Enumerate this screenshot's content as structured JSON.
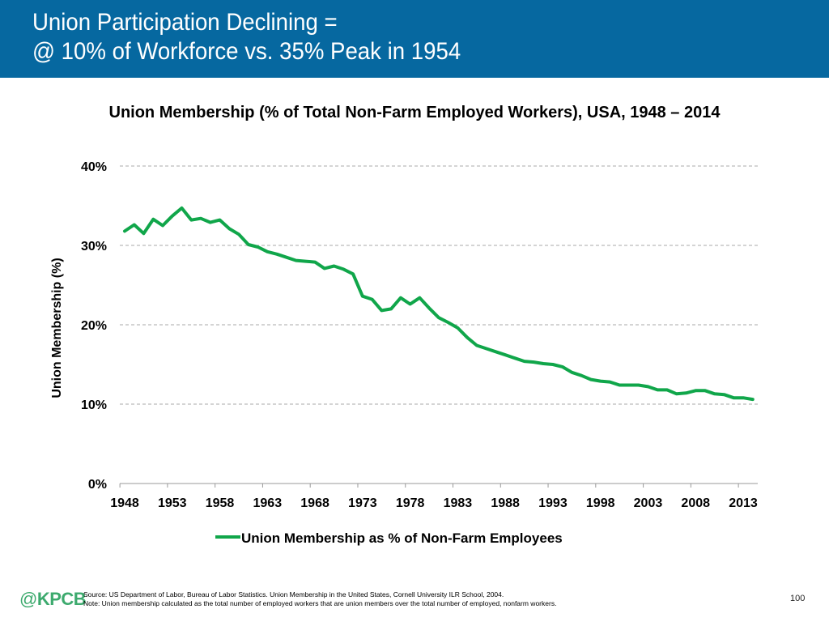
{
  "header": {
    "title_line1": "Union Participation Declining =",
    "title_line2": "@ 10% of Workforce vs. 35% Peak in 1954",
    "background_color": "#0668a0"
  },
  "chart_data": {
    "type": "line",
    "title": "Union Membership (% of Total Non-Farm Employed Workers), USA, 1948 – 2014",
    "xlabel": "",
    "ylabel": "Union Membership (%)",
    "ylim": [
      0,
      40
    ],
    "xlim": [
      1948,
      2014
    ],
    "y_ticks": [
      0,
      10,
      20,
      30,
      40
    ],
    "y_tick_labels": [
      "0%",
      "10%",
      "20%",
      "30%",
      "40%"
    ],
    "x_tick_labels": [
      "1948",
      "1953",
      "1958",
      "1963",
      "1968",
      "1973",
      "1978",
      "1983",
      "1988",
      "1993",
      "1998",
      "2003",
      "2008",
      "2013"
    ],
    "grid": "horizontal dashed",
    "legend_position": "bottom",
    "series": [
      {
        "name": "Union Membership as % of Non-Farm Employees",
        "color": "#10a64a",
        "x": [
          1948,
          1949,
          1950,
          1951,
          1952,
          1953,
          1954,
          1955,
          1956,
          1957,
          1958,
          1959,
          1960,
          1961,
          1962,
          1963,
          1964,
          1965,
          1966,
          1967,
          1968,
          1969,
          1970,
          1971,
          1972,
          1973,
          1974,
          1975,
          1976,
          1977,
          1978,
          1979,
          1980,
          1981,
          1982,
          1983,
          1984,
          1985,
          1986,
          1987,
          1988,
          1989,
          1990,
          1991,
          1992,
          1993,
          1994,
          1995,
          1996,
          1997,
          1998,
          1999,
          2000,
          2001,
          2002,
          2003,
          2004,
          2005,
          2006,
          2007,
          2008,
          2009,
          2010,
          2011,
          2012,
          2013,
          2014
        ],
        "values": [
          31.8,
          32.6,
          31.5,
          33.3,
          32.5,
          33.7,
          34.7,
          33.2,
          33.4,
          32.9,
          33.2,
          32.1,
          31.4,
          30.1,
          29.8,
          29.2,
          28.9,
          28.5,
          28.1,
          28.0,
          27.9,
          27.1,
          27.4,
          27.0,
          26.4,
          23.6,
          23.2,
          21.8,
          22.0,
          23.4,
          22.6,
          23.4,
          22.1,
          20.9,
          20.3,
          19.6,
          18.4,
          17.4,
          17.0,
          16.6,
          16.2,
          15.8,
          15.4,
          15.3,
          15.1,
          15.0,
          14.7,
          14.0,
          13.6,
          13.1,
          12.9,
          12.8,
          12.4,
          12.4,
          12.4,
          12.2,
          11.8,
          11.8,
          11.3,
          11.4,
          11.7,
          11.7,
          11.3,
          11.2,
          10.8,
          10.8,
          10.6
        ]
      }
    ]
  },
  "footer": {
    "logo_at": "@",
    "logo_text": "KPCB",
    "source": "Source: US Department of Labor, Bureau of Labor Statistics. Union Membership in the United States, Cornell University ILR School, 2004.",
    "note": "Note: Union membership calculated as the total number of employed workers that are union members over the total number of employed, nonfarm workers.",
    "page_number": "100"
  }
}
